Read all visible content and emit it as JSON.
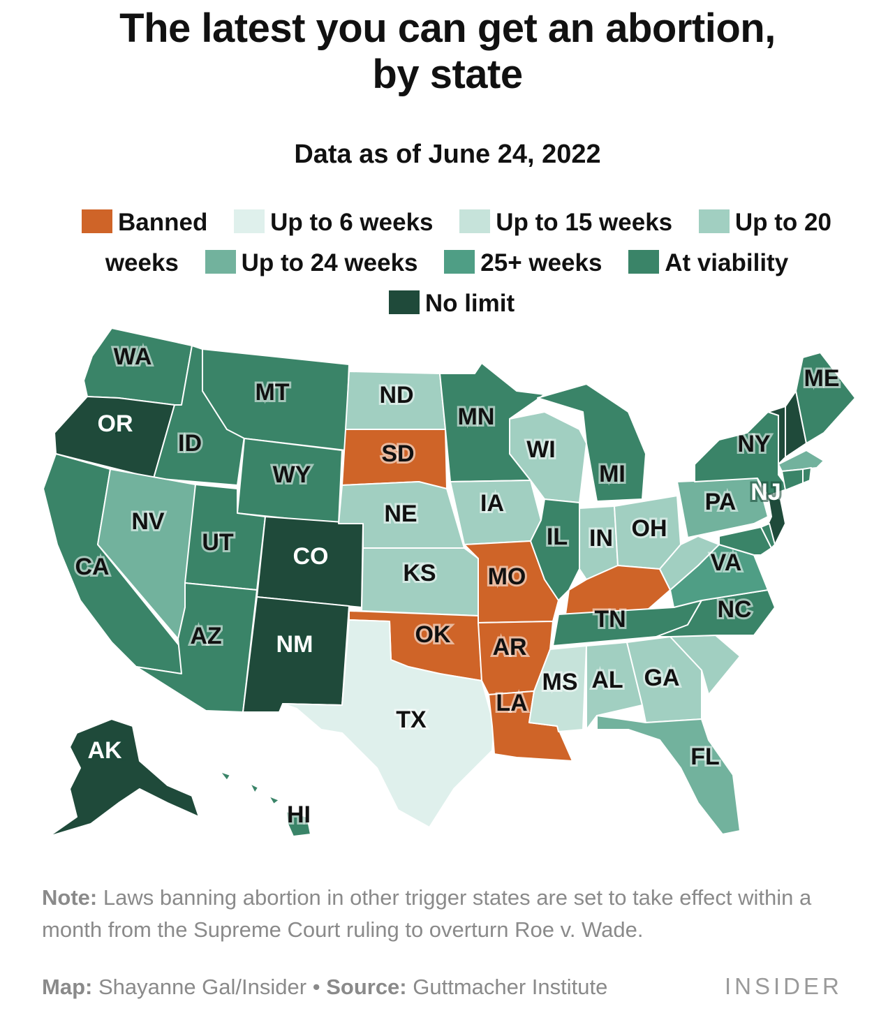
{
  "title_line1": "The latest you can get an abortion,",
  "title_line2": "by state",
  "subtitle": "Data as of June 24, 2022",
  "legend": [
    {
      "key": "banned",
      "label": "Banned",
      "color": "#cf6428"
    },
    {
      "key": "w6",
      "label": "Up to 6 weeks",
      "color": "#dff0ec"
    },
    {
      "key": "w15",
      "label": "Up to 15 weeks",
      "color": "#c6e3da"
    },
    {
      "key": "w20",
      "label": "Up to 20 weeks",
      "color": "#a1cfc1"
    },
    {
      "key": "w24",
      "label": "Up to 24 weeks",
      "color": "#72b29d"
    },
    {
      "key": "w25",
      "label": "25+ weeks",
      "color": "#4f9e85"
    },
    {
      "key": "viab",
      "label": "At viability",
      "color": "#3a8468"
    },
    {
      "key": "nolimit",
      "label": "No limit",
      "color": "#1f4a3a"
    }
  ],
  "states": [
    {
      "code": "WA",
      "cat": "viab"
    },
    {
      "code": "OR",
      "cat": "nolimit"
    },
    {
      "code": "CA",
      "cat": "viab"
    },
    {
      "code": "ID",
      "cat": "viab"
    },
    {
      "code": "NV",
      "cat": "w24"
    },
    {
      "code": "MT",
      "cat": "viab"
    },
    {
      "code": "WY",
      "cat": "viab"
    },
    {
      "code": "UT",
      "cat": "viab"
    },
    {
      "code": "AZ",
      "cat": "viab"
    },
    {
      "code": "CO",
      "cat": "nolimit"
    },
    {
      "code": "NM",
      "cat": "nolimit"
    },
    {
      "code": "ND",
      "cat": "w20"
    },
    {
      "code": "SD",
      "cat": "banned"
    },
    {
      "code": "NE",
      "cat": "w20"
    },
    {
      "code": "KS",
      "cat": "w20"
    },
    {
      "code": "OK",
      "cat": "banned"
    },
    {
      "code": "TX",
      "cat": "w6"
    },
    {
      "code": "MN",
      "cat": "viab"
    },
    {
      "code": "IA",
      "cat": "w20"
    },
    {
      "code": "MO",
      "cat": "banned"
    },
    {
      "code": "AR",
      "cat": "banned"
    },
    {
      "code": "LA",
      "cat": "banned"
    },
    {
      "code": "WI",
      "cat": "w20"
    },
    {
      "code": "IL",
      "cat": "viab"
    },
    {
      "code": "MI",
      "cat": "viab"
    },
    {
      "code": "IN",
      "cat": "w20"
    },
    {
      "code": "OH",
      "cat": "w20"
    },
    {
      "code": "KY",
      "cat": "banned"
    },
    {
      "code": "TN",
      "cat": "viab"
    },
    {
      "code": "MS",
      "cat": "w15"
    },
    {
      "code": "AL",
      "cat": "w20"
    },
    {
      "code": "GA",
      "cat": "w20"
    },
    {
      "code": "FL",
      "cat": "w24"
    },
    {
      "code": "SC",
      "cat": "w20"
    },
    {
      "code": "NC",
      "cat": "viab"
    },
    {
      "code": "VA",
      "cat": "w25"
    },
    {
      "code": "WV",
      "cat": "w20"
    },
    {
      "code": "PA",
      "cat": "w24"
    },
    {
      "code": "NY",
      "cat": "viab"
    },
    {
      "code": "NJ",
      "cat": "nolimit"
    },
    {
      "code": "ME",
      "cat": "viab"
    },
    {
      "code": "VT",
      "cat": "nolimit"
    },
    {
      "code": "NH",
      "cat": "nolimit"
    },
    {
      "code": "MA",
      "cat": "w24"
    },
    {
      "code": "CT",
      "cat": "viab"
    },
    {
      "code": "RI",
      "cat": "viab"
    },
    {
      "code": "MD",
      "cat": "viab"
    },
    {
      "code": "DE",
      "cat": "viab"
    },
    {
      "code": "AK",
      "cat": "nolimit"
    },
    {
      "code": "HI",
      "cat": "viab"
    }
  ],
  "labels": {
    "WA": "WA",
    "OR": "OR",
    "CA": "CA",
    "ID": "ID",
    "NV": "NV",
    "MT": "MT",
    "WY": "WY",
    "UT": "UT",
    "AZ": "AZ",
    "CO": "CO",
    "NM": "NM",
    "ND": "ND",
    "SD": "SD",
    "NE": "NE",
    "KS": "KS",
    "OK": "OK",
    "TX": "TX",
    "MN": "MN",
    "IA": "IA",
    "MO": "MO",
    "AR": "AR",
    "LA": "LA",
    "WI": "WI",
    "IL": "IL",
    "MI": "MI",
    "IN": "IN",
    "OH": "OH",
    "TN": "TN",
    "MS": "MS",
    "AL": "AL",
    "GA": "GA",
    "FL": "FL",
    "NC": "NC",
    "VA": "VA",
    "PA": "PA",
    "NY": "NY",
    "NJ": "NJ",
    "ME": "ME",
    "AK": "AK",
    "HI": "HI"
  },
  "note_label": "Note:",
  "note_text": "Laws banning abortion in other trigger states are set to take effect within a month from the Supreme Court ruling to overturn Roe v. Wade.",
  "credit_map_label": "Map:",
  "credit_map": "Shayanne Gal/Insider",
  "credit_sep": "•",
  "credit_source_label": "Source:",
  "credit_source": "Guttmacher Institute",
  "brand": "INSIDER"
}
